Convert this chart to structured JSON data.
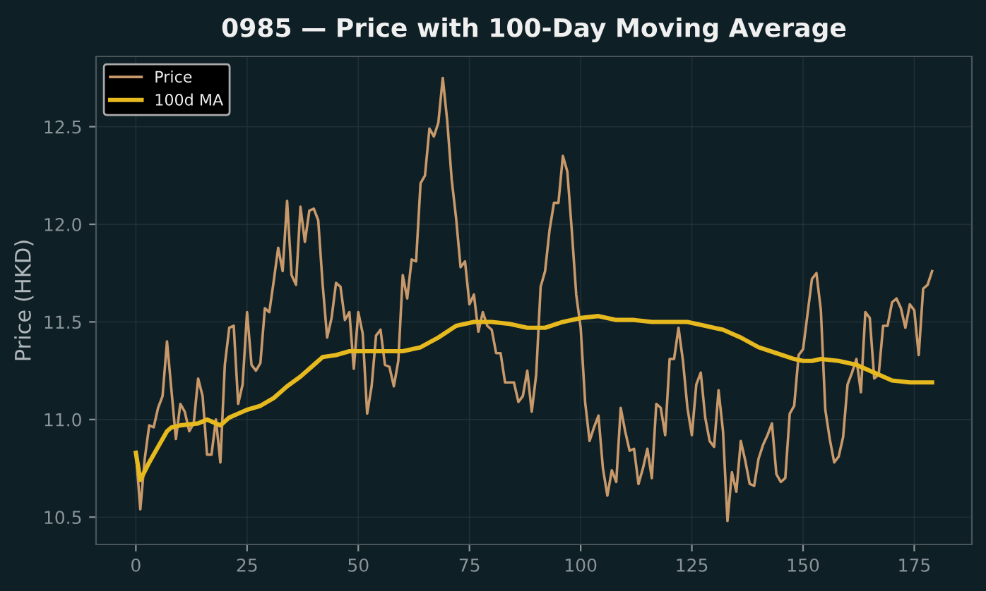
{
  "chart_data": {
    "type": "line",
    "title": "0985 — Price with 100-Day Moving Average",
    "ylabel": "Price (HKD)",
    "xlim": [
      -8.95,
      187.95
    ],
    "xticks": [
      0,
      25,
      50,
      75,
      100,
      125,
      150,
      175
    ],
    "ylim": [
      10.36,
      12.86
    ],
    "yticks": [
      10.5,
      {
        "value": 11,
        "label": "11.0"
      },
      11.5,
      {
        "value": 12,
        "label": "12.0"
      },
      12.5
    ],
    "grid": true,
    "legend": "top left",
    "marker": "none",
    "line_style": "solid",
    "series": [
      {
        "name": "Price",
        "color": "#c8996a",
        "x": [
          0,
          1,
          2,
          3,
          4,
          5,
          6,
          7,
          8,
          9,
          10,
          11,
          12,
          13,
          14,
          15,
          16,
          17,
          18,
          19,
          20,
          21,
          22,
          23,
          24,
          25,
          26,
          27,
          28,
          29,
          30,
          31,
          32,
          33,
          34,
          35,
          36,
          37,
          38,
          39,
          40,
          41,
          42,
          43,
          44,
          45,
          46,
          47,
          48,
          49,
          50,
          51,
          52,
          53,
          54,
          55,
          56,
          57,
          58,
          59,
          60,
          61,
          62,
          63,
          64,
          65,
          66,
          67,
          68,
          69,
          70,
          71,
          72,
          73,
          74,
          75,
          76,
          77,
          78,
          79,
          80,
          81,
          82,
          83,
          84,
          85,
          86,
          87,
          88,
          89,
          90,
          91,
          92,
          93,
          94,
          95,
          96,
          97,
          98,
          99,
          100,
          101,
          102,
          103,
          104,
          105,
          106,
          107,
          108,
          109,
          110,
          111,
          112,
          113,
          114,
          115,
          116,
          117,
          118,
          119,
          120,
          121,
          122,
          123,
          124,
          125,
          126,
          127,
          128,
          129,
          130,
          131,
          132,
          133,
          134,
          135,
          136,
          137,
          138,
          139,
          140,
          141,
          142,
          143,
          144,
          145,
          146,
          147,
          148,
          149,
          150,
          151,
          152,
          153,
          154,
          155,
          156,
          157,
          158,
          159,
          160,
          161,
          162,
          163,
          164,
          165,
          166,
          167,
          168,
          169,
          170,
          171,
          172,
          173,
          174,
          175,
          176,
          177,
          178,
          179
        ],
        "values": [
          10.83,
          10.54,
          10.8,
          10.97,
          10.96,
          11.06,
          11.12,
          11.4,
          11.15,
          10.9,
          11.08,
          11.04,
          10.94,
          10.98,
          11.21,
          11.12,
          10.82,
          10.82,
          11.0,
          10.78,
          11.28,
          11.47,
          11.48,
          11.08,
          11.18,
          11.55,
          11.28,
          11.25,
          11.29,
          11.57,
          11.55,
          11.71,
          11.88,
          11.76,
          12.12,
          11.74,
          11.69,
          12.09,
          11.91,
          12.07,
          12.08,
          12.02,
          11.69,
          11.42,
          11.52,
          11.7,
          11.68,
          11.51,
          11.55,
          11.26,
          11.55,
          11.44,
          11.03,
          11.17,
          11.43,
          11.46,
          11.28,
          11.27,
          11.17,
          11.3,
          11.74,
          11.62,
          11.82,
          11.81,
          12.21,
          12.25,
          12.49,
          12.45,
          12.52,
          12.75,
          12.53,
          12.23,
          12.03,
          11.78,
          11.81,
          11.59,
          11.64,
          11.45,
          11.55,
          11.48,
          11.46,
          11.34,
          11.34,
          11.19,
          11.19,
          11.19,
          11.09,
          11.12,
          11.25,
          11.04,
          11.23,
          11.68,
          11.76,
          11.97,
          12.11,
          12.11,
          12.35,
          12.27,
          11.97,
          11.64,
          11.47,
          11.09,
          10.89,
          10.96,
          11.02,
          10.75,
          10.61,
          10.74,
          10.68,
          11.06,
          10.94,
          10.84,
          10.85,
          10.67,
          10.75,
          10.85,
          10.7,
          11.08,
          11.06,
          10.92,
          11.31,
          11.31,
          11.47,
          11.3,
          11.06,
          10.92,
          11.18,
          11.24,
          11.01,
          10.89,
          10.86,
          11.15,
          10.94,
          10.48,
          10.73,
          10.63,
          10.89,
          10.79,
          10.67,
          10.66,
          10.8,
          10.87,
          10.92,
          10.98,
          10.72,
          10.68,
          10.7,
          11.03,
          11.07,
          11.33,
          11.36,
          11.54,
          11.72,
          11.75,
          11.56,
          11.05,
          10.9,
          10.78,
          10.81,
          10.91,
          11.18,
          11.24,
          11.31,
          11.14,
          11.55,
          11.52,
          11.21,
          11.23,
          11.48,
          11.48,
          11.6,
          11.62,
          11.57,
          11.47,
          11.59,
          11.56,
          11.33,
          11.67,
          11.69,
          11.76
        ]
      },
      {
        "name": "100d MA",
        "color": "#e6b91e",
        "x": [
          0,
          1,
          3,
          5,
          7,
          8,
          10,
          14,
          16,
          18,
          19,
          21,
          23,
          25,
          28,
          31,
          34,
          37,
          40,
          42,
          45,
          48,
          52,
          56,
          60,
          64,
          68,
          72,
          76,
          80,
          84,
          88,
          92,
          96,
          100,
          104,
          108,
          112,
          116,
          120,
          124,
          128,
          132,
          136,
          140,
          144,
          148,
          150,
          152,
          154,
          158,
          162,
          166,
          170,
          174,
          177,
          179
        ],
        "values": [
          10.83,
          10.69,
          10.78,
          10.86,
          10.94,
          10.96,
          10.97,
          10.98,
          11.0,
          10.98,
          10.97,
          11.01,
          11.03,
          11.05,
          11.07,
          11.11,
          11.17,
          11.22,
          11.28,
          11.32,
          11.33,
          11.35,
          11.35,
          11.35,
          11.35,
          11.37,
          11.42,
          11.48,
          11.5,
          11.5,
          11.49,
          11.47,
          11.47,
          11.5,
          11.52,
          11.53,
          11.51,
          11.51,
          11.5,
          11.5,
          11.5,
          11.48,
          11.46,
          11.42,
          11.37,
          11.34,
          11.31,
          11.3,
          11.3,
          11.31,
          11.3,
          11.28,
          11.24,
          11.2,
          11.19,
          11.19,
          11.19
        ]
      }
    ]
  }
}
